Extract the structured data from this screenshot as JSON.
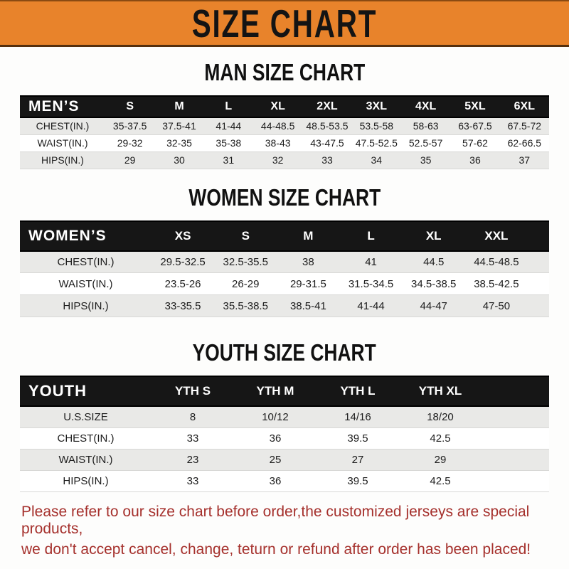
{
  "banner": {
    "title": "SIZE CHART",
    "bg_color": "#E8832B"
  },
  "sections": [
    {
      "id": "men",
      "title": "MAN SIZE CHART",
      "corner_label": "MEN’S",
      "columns": [
        "S",
        "M",
        "L",
        "XL",
        "2XL",
        "3XL",
        "4XL",
        "5XL",
        "6XL"
      ],
      "rows": [
        {
          "label": "CHEST(IN.)",
          "values": [
            "35-37.5",
            "37.5-41",
            "41-44",
            "44-48.5",
            "48.5-53.5",
            "53.5-58",
            "58-63",
            "63-67.5",
            "67.5-72"
          ]
        },
        {
          "label": "WAIST(IN.)",
          "values": [
            "29-32",
            "32-35",
            "35-38",
            "38-43",
            "43-47.5",
            "47.5-52.5",
            "52.5-57",
            "57-62",
            "62-66.5"
          ]
        },
        {
          "label": "HIPS(IN.)",
          "values": [
            "29",
            "30",
            "31",
            "32",
            "33",
            "34",
            "35",
            "36",
            "37"
          ]
        }
      ]
    },
    {
      "id": "women",
      "title": "WOMEN SIZE CHART",
      "corner_label": "WOMEN’S",
      "columns": [
        "XS",
        "S",
        "M",
        "L",
        "XL",
        "XXL"
      ],
      "rows": [
        {
          "label": "CHEST(IN.)",
          "values": [
            "29.5-32.5",
            "32.5-35.5",
            "38",
            "41",
            "44.5",
            "44.5-48.5"
          ]
        },
        {
          "label": "WAIST(IN.)",
          "values": [
            "23.5-26",
            "26-29",
            "29-31.5",
            "31.5-34.5",
            "34.5-38.5",
            "38.5-42.5"
          ]
        },
        {
          "label": "HIPS(IN.)",
          "values": [
            "33-35.5",
            "35.5-38.5",
            "38.5-41",
            "41-44",
            "44-47",
            "47-50"
          ]
        }
      ]
    },
    {
      "id": "youth",
      "title": "YOUTH SIZE CHART",
      "corner_label": "YOUTH",
      "columns": [
        "YTH S",
        "YTH M",
        "YTH L",
        "YTH XL"
      ],
      "rows": [
        {
          "label": "U.S.SIZE",
          "values": [
            "8",
            "10/12",
            "14/16",
            "18/20"
          ]
        },
        {
          "label": "CHEST(IN.)",
          "values": [
            "33",
            "36",
            "39.5",
            "42.5"
          ]
        },
        {
          "label": "WAIST(IN.)",
          "values": [
            "23",
            "25",
            "27",
            "29"
          ]
        },
        {
          "label": "HIPS(IN.)",
          "values": [
            "33",
            "36",
            "39.5",
            "42.5"
          ]
        }
      ]
    }
  ],
  "footer": {
    "lines": [
      "Please refer to our size chart before order,the customized jerseys are special products,",
      "we don't accept cancel, change, teturn or refund after order has been placed!"
    ],
    "text_color": "#A5302C"
  }
}
